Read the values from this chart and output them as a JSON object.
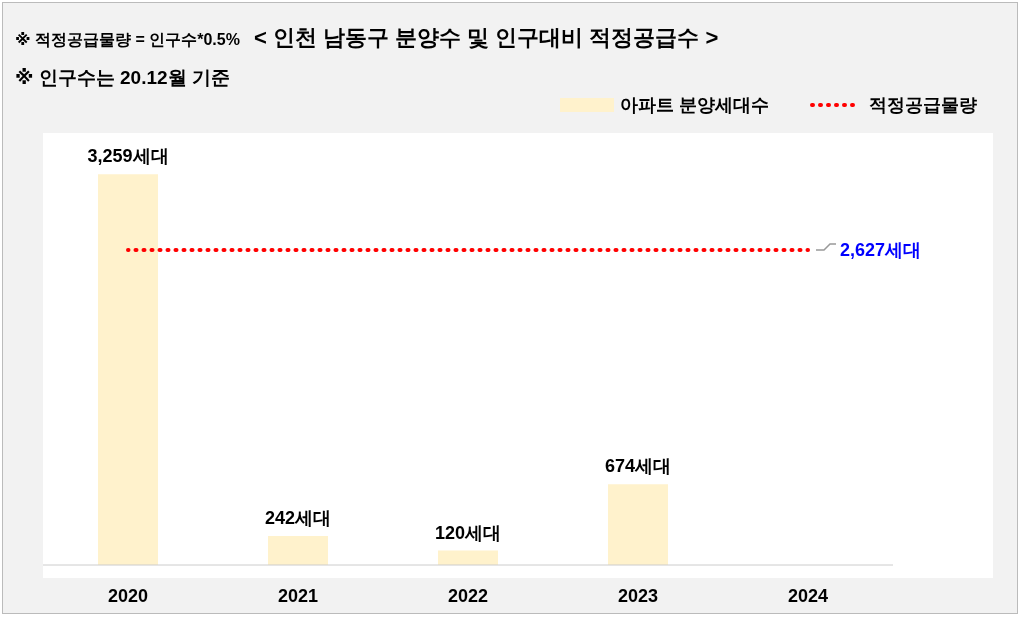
{
  "chart_data": {
    "type": "bar",
    "title": "< 인천 남동구 분양수 및 인구대비 적정공급수 >",
    "annotations": [
      "※ 적정공급물량 = 인구수*0.5%",
      "※ 인구수는 20.12월 기준"
    ],
    "categories": [
      "2020",
      "2021",
      "2022",
      "2023",
      "2024"
    ],
    "series": [
      {
        "name": "아파트 분양세대수",
        "type": "bar",
        "color": "#fff2cc",
        "values": [
          3259,
          242,
          120,
          674,
          null
        ],
        "value_labels": [
          "3,259세대",
          "242세대",
          "120세대",
          "674세대",
          null
        ]
      },
      {
        "name": "적정공급물량",
        "type": "line",
        "color": "#ff0000",
        "line_style": "dotted",
        "marker": "none",
        "values": [
          2627,
          2627,
          2627,
          2627,
          2627
        ],
        "value_labels": [
          null,
          null,
          null,
          null,
          "2,627세대"
        ]
      }
    ],
    "legend": "top right",
    "grid": false
  }
}
